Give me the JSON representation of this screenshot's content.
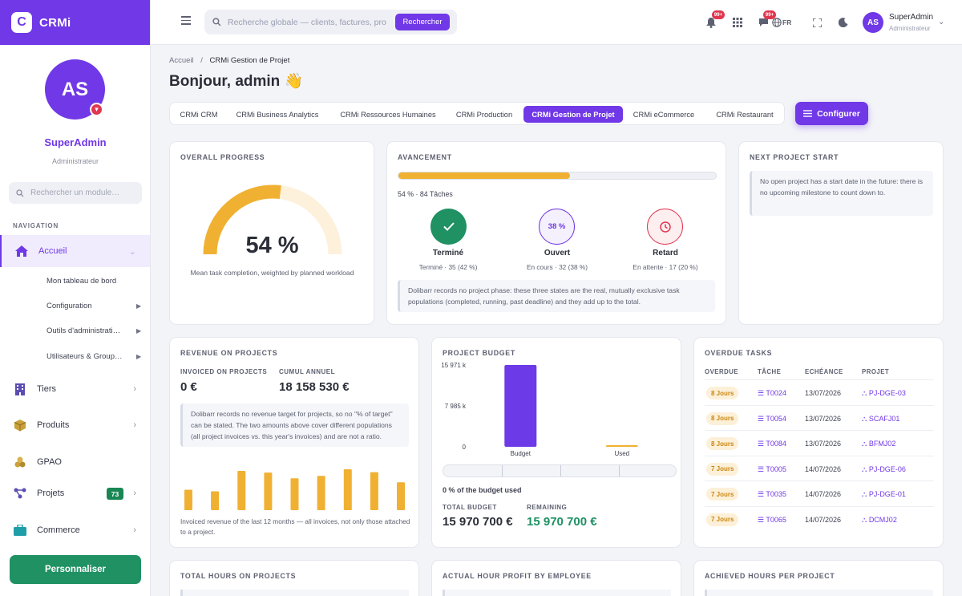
{
  "brand": {
    "name": "CRMi",
    "logo_letter": "C"
  },
  "sidebar": {
    "avatar_initials": "AS",
    "user_name": "SuperAdmin",
    "user_role": "Administrateur",
    "search_placeholder": "Rechercher un module…",
    "nav_heading": "NAVIGATION",
    "items": [
      {
        "label": "Accueil",
        "icon": "home-icon",
        "active": true
      },
      {
        "label": "Tiers",
        "icon": "building-icon"
      },
      {
        "label": "Produits",
        "icon": "box-icon"
      },
      {
        "label": "GPAO",
        "icon": "boxes-icon"
      },
      {
        "label": "Projets",
        "icon": "project-icon",
        "badge": "73"
      },
      {
        "label": "Commerce",
        "icon": "briefcase-icon"
      }
    ],
    "sub_items": [
      {
        "label": "Mon tableau de bord"
      },
      {
        "label": "Configuration"
      },
      {
        "label": "Outils d'administrati…"
      },
      {
        "label": "Utilisateurs & Group…"
      }
    ],
    "personalize_label": "Personnaliser"
  },
  "topbar": {
    "search_placeholder": "Recherche globale — clients, factures, pro",
    "search_button": "Rechercher",
    "notif_badge": "99+",
    "chat_badge": "99+",
    "language": "FR",
    "user_initials": "AS",
    "user_name": "SuperAdmin",
    "user_role": "Administrateur"
  },
  "breadcrumb": {
    "home": "Accueil",
    "separator": "/",
    "current": "CRMi Gestion de Projet"
  },
  "greeting": "Bonjour, admin 👋",
  "tabs": [
    {
      "label": "CRMi CRM"
    },
    {
      "label": "CRMi Business Analytics"
    },
    {
      "label": "CRMi Ressources Humaines"
    },
    {
      "label": "CRMi Production"
    },
    {
      "label": "CRMi Gestion de Projet",
      "active": true
    },
    {
      "label": "CRMi eCommerce"
    },
    {
      "label": "CRMi Restaurant"
    }
  ],
  "configure_button": "Configurer",
  "overall_progress": {
    "title": "OVERALL PROGRESS",
    "value_label": "54 %",
    "fraction": 0.54,
    "caption": "Mean task completion, weighted by planned workload",
    "color": "#f0b132"
  },
  "avancement": {
    "title": "AVANCEMENT",
    "fraction": 0.54,
    "text": "54 % · 84 Tâches",
    "states": [
      {
        "label": "Terminé",
        "sub": "Terminé · 35 (42 %)",
        "icon": "check-icon",
        "color": "#1f9163"
      },
      {
        "label": "Ouvert",
        "sub": "En cours · 32 (38 %)",
        "circle_text": "38 %",
        "color": "#7038e6"
      },
      {
        "label": "Retard",
        "sub": "En attente · 17 (20 %)",
        "icon": "clock-icon",
        "color": "#e0374f"
      }
    ],
    "note": "Dolibarr records no project phase: these three states are the real, mutually exclusive task populations (completed, running, past deadline) and they add up to the total."
  },
  "next_project": {
    "title": "NEXT PROJECT START",
    "note": "No open project has a start date in the future: there is no upcoming milestone to count down to."
  },
  "revenue": {
    "title": "REVENUE ON PROJECTS",
    "invoiced_label": "INVOICED ON PROJECTS",
    "invoiced_value": "0 €",
    "cumul_label": "CUMUL ANNUEL",
    "cumul_value": "18 158 530 €",
    "note": "Dolibarr records no revenue target for projects, so no \"% of target\" can be stated. The two amounts above cover different populations (all project invoices vs. this year's invoices) and are not a ratio.",
    "caption": "Invoiced revenue of the last 12 months — all invoices, not only those attached to a project.",
    "bars": [
      0.5,
      0.46,
      0.96,
      0.92,
      0.78,
      0.84,
      1.0,
      0.93,
      0.68
    ],
    "color": "#f0b132"
  },
  "chart_data": {
    "type": "bar",
    "title": "PROJECT BUDGET",
    "categories": [
      "Budget",
      "Used"
    ],
    "values": [
      15970700,
      0
    ],
    "ytick_labels": [
      "15 971 k",
      "7 985 k",
      "0"
    ],
    "ylim": [
      0,
      15970700
    ],
    "colors": [
      "#6c3ae6",
      "#f0b132"
    ]
  },
  "budget": {
    "used_text": "0 % of the budget used",
    "total_label": "TOTAL BUDGET",
    "total_value": "15 970 700 €",
    "remaining_label": "REMAINING",
    "remaining_value": "15 970 700 €"
  },
  "overdue": {
    "title": "OVERDUE TASKS",
    "headers": [
      "OVERDUE",
      "TÂCHE",
      "ECHÉANCE",
      "PROJET"
    ],
    "rows": [
      {
        "overdue": "8 Jours",
        "task": "T0024",
        "date": "13/07/2026",
        "project": "PJ-DGE-03"
      },
      {
        "overdue": "8 Jours",
        "task": "T0054",
        "date": "13/07/2026",
        "project": "SCAFJ01"
      },
      {
        "overdue": "8 Jours",
        "task": "T0084",
        "date": "13/07/2026",
        "project": "BFMJ02"
      },
      {
        "overdue": "7 Jours",
        "task": "T0005",
        "date": "14/07/2026",
        "project": "PJ-DGE-06"
      },
      {
        "overdue": "7 Jours",
        "task": "T0035",
        "date": "14/07/2026",
        "project": "PJ-DGE-01"
      },
      {
        "overdue": "7 Jours",
        "task": "T0065",
        "date": "14/07/2026",
        "project": "DCMJ02"
      }
    ]
  },
  "bottom_cards": [
    {
      "title": "TOTAL HOURS ON PROJECTS"
    },
    {
      "title": "ACTUAL HOUR PROFIT BY EMPLOYEE"
    },
    {
      "title": "ACHIEVED HOURS PER PROJECT"
    }
  ]
}
